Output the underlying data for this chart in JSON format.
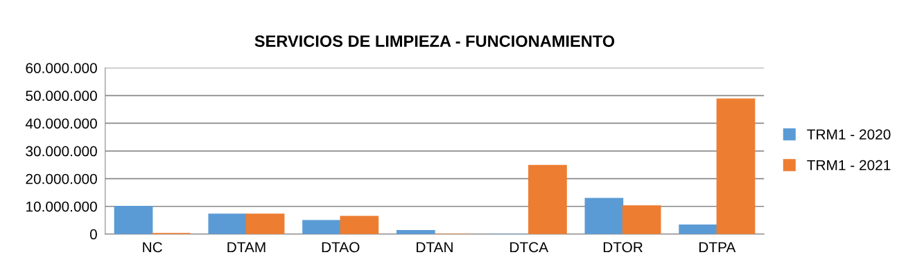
{
  "chart_data": {
    "type": "bar",
    "title": "SERVICIOS DE LIMPIEZA - FUNCIONAMIENTO",
    "categories": [
      "NC",
      "DTAM",
      "DTAO",
      "DTAN",
      "DTCA",
      "DTOR",
      "DTPA"
    ],
    "series": [
      {
        "name": "TRM1 - 2020",
        "color": "#5b9bd5",
        "values": [
          10000000,
          7200000,
          4900000,
          1300000,
          0,
          12900000,
          3300000
        ]
      },
      {
        "name": "TRM1 - 2021",
        "color": "#ed7d31",
        "values": [
          200000,
          7200000,
          6400000,
          0,
          24800000,
          10200000,
          48800000
        ]
      }
    ],
    "ylim": [
      0,
      60000000
    ],
    "yticks": [
      {
        "value": 0,
        "label": "0"
      },
      {
        "value": 10000000,
        "label": "10.000.000"
      },
      {
        "value": 20000000,
        "label": "20.000.000"
      },
      {
        "value": 30000000,
        "label": "30.000.000"
      },
      {
        "value": 40000000,
        "label": "40.000.000"
      },
      {
        "value": 50000000,
        "label": "50.000.000"
      },
      {
        "value": 60000000,
        "label": "60.000.000"
      }
    ],
    "grid": "y",
    "legend": "right"
  }
}
